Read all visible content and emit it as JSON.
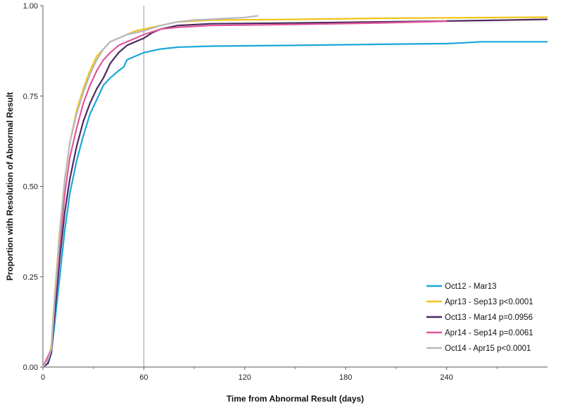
{
  "chart_data": {
    "type": "line",
    "title": "",
    "xlabel": "Time from Abnormal Result (days)",
    "ylabel": "Proportion with Resolution of Abnormal Result",
    "xlim": [
      0,
      300
    ],
    "ylim": [
      0,
      1
    ],
    "x_ticks": [
      "0",
      "60",
      "120",
      "180",
      "240"
    ],
    "y_ticks": [
      "0.00",
      "0.25",
      "0.50",
      "0.75",
      "1.00"
    ],
    "reference_line_x": 60,
    "grid": false,
    "legend_position": "bottom-right",
    "series": [
      {
        "name": "Oct12 - Mar13",
        "color": "#1aa7d9",
        "points": [
          [
            0,
            0
          ],
          [
            3,
            0.01
          ],
          [
            5,
            0.04
          ],
          [
            7,
            0.12
          ],
          [
            10,
            0.25
          ],
          [
            13,
            0.38
          ],
          [
            16,
            0.48
          ],
          [
            20,
            0.57
          ],
          [
            24,
            0.64
          ],
          [
            28,
            0.7
          ],
          [
            32,
            0.74
          ],
          [
            36,
            0.78
          ],
          [
            40,
            0.8
          ],
          [
            45,
            0.82
          ],
          [
            48,
            0.83
          ],
          [
            50,
            0.85
          ],
          [
            55,
            0.86
          ],
          [
            60,
            0.87
          ],
          [
            65,
            0.875
          ],
          [
            70,
            0.88
          ],
          [
            80,
            0.885
          ],
          [
            100,
            0.888
          ],
          [
            150,
            0.89
          ],
          [
            200,
            0.893
          ],
          [
            240,
            0.895
          ],
          [
            250,
            0.897
          ],
          [
            260,
            0.9
          ],
          [
            300,
            0.9
          ]
        ]
      },
      {
        "name": "Apr13 - Sep13 p<0.0001",
        "color": "#f0c419",
        "points": [
          [
            0,
            0
          ],
          [
            3,
            0.02
          ],
          [
            5,
            0.06
          ],
          [
            7,
            0.2
          ],
          [
            10,
            0.38
          ],
          [
            13,
            0.52
          ],
          [
            16,
            0.62
          ],
          [
            20,
            0.71
          ],
          [
            24,
            0.77
          ],
          [
            28,
            0.82
          ],
          [
            32,
            0.86
          ],
          [
            36,
            0.88
          ],
          [
            40,
            0.9
          ],
          [
            45,
            0.91
          ],
          [
            50,
            0.92
          ],
          [
            55,
            0.93
          ],
          [
            60,
            0.935
          ],
          [
            70,
            0.945
          ],
          [
            80,
            0.955
          ],
          [
            100,
            0.96
          ],
          [
            150,
            0.962
          ],
          [
            200,
            0.965
          ],
          [
            300,
            0.968
          ]
        ]
      },
      {
        "name": "Oct13 - Mar14 p=0.0956",
        "color": "#4b2a5e",
        "points": [
          [
            0,
            0
          ],
          [
            3,
            0.01
          ],
          [
            5,
            0.04
          ],
          [
            7,
            0.15
          ],
          [
            10,
            0.3
          ],
          [
            13,
            0.43
          ],
          [
            16,
            0.52
          ],
          [
            20,
            0.61
          ],
          [
            24,
            0.68
          ],
          [
            28,
            0.73
          ],
          [
            32,
            0.77
          ],
          [
            36,
            0.8
          ],
          [
            40,
            0.84
          ],
          [
            45,
            0.87
          ],
          [
            50,
            0.89
          ],
          [
            55,
            0.9
          ],
          [
            60,
            0.91
          ],
          [
            65,
            0.925
          ],
          [
            70,
            0.935
          ],
          [
            80,
            0.945
          ],
          [
            100,
            0.95
          ],
          [
            150,
            0.952
          ],
          [
            200,
            0.955
          ],
          [
            250,
            0.958
          ],
          [
            300,
            0.962
          ]
        ]
      },
      {
        "name": "Apr14 - Sep14 p=0.0061",
        "color": "#e0559a",
        "points": [
          [
            0,
            0
          ],
          [
            3,
            0.03
          ],
          [
            5,
            0.05
          ],
          [
            7,
            0.18
          ],
          [
            10,
            0.34
          ],
          [
            13,
            0.48
          ],
          [
            16,
            0.58
          ],
          [
            20,
            0.66
          ],
          [
            24,
            0.73
          ],
          [
            28,
            0.78
          ],
          [
            32,
            0.82
          ],
          [
            36,
            0.85
          ],
          [
            40,
            0.87
          ],
          [
            45,
            0.89
          ],
          [
            50,
            0.9
          ],
          [
            55,
            0.91
          ],
          [
            60,
            0.92
          ],
          [
            70,
            0.935
          ],
          [
            80,
            0.94
          ],
          [
            100,
            0.945
          ],
          [
            150,
            0.948
          ],
          [
            200,
            0.952
          ],
          [
            240,
            0.957
          ]
        ]
      },
      {
        "name": "Oct14 - Apr15 p<0.0001",
        "color": "#b8b8c4",
        "points": [
          [
            0,
            0
          ],
          [
            3,
            0.02
          ],
          [
            5,
            0.05
          ],
          [
            7,
            0.19
          ],
          [
            10,
            0.37
          ],
          [
            13,
            0.52
          ],
          [
            16,
            0.62
          ],
          [
            20,
            0.7
          ],
          [
            24,
            0.76
          ],
          [
            28,
            0.81
          ],
          [
            32,
            0.85
          ],
          [
            36,
            0.88
          ],
          [
            40,
            0.9
          ],
          [
            45,
            0.91
          ],
          [
            50,
            0.92
          ],
          [
            55,
            0.925
          ],
          [
            60,
            0.93
          ],
          [
            70,
            0.945
          ],
          [
            80,
            0.955
          ],
          [
            90,
            0.96
          ],
          [
            110,
            0.965
          ],
          [
            120,
            0.967
          ],
          [
            128,
            0.972
          ]
        ]
      }
    ]
  }
}
